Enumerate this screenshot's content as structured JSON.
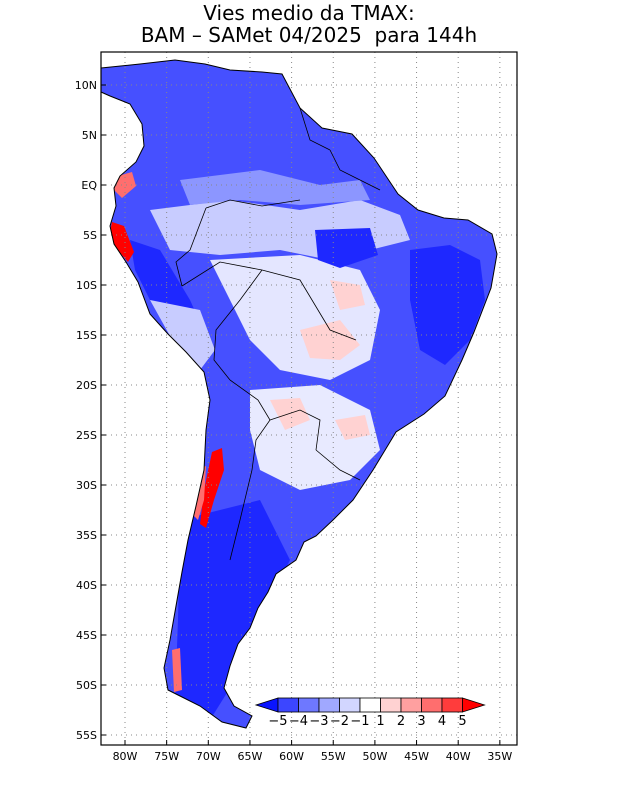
{
  "title": {
    "line1": "Vies medio da TMAX:",
    "line2": "BAM – SAMet 04/2025  para 144h"
  },
  "map": {
    "type": "contour map",
    "region": "South America",
    "lat_labels": [
      "10N",
      "5N",
      "EQ",
      "5S",
      "10S",
      "15S",
      "20S",
      "25S",
      "30S",
      "35S",
      "40S",
      "45S",
      "50S",
      "55S"
    ],
    "lon_labels": [
      "80W",
      "75W",
      "70W",
      "65W",
      "60W",
      "55W",
      "50W",
      "45W",
      "40W",
      "35W"
    ],
    "grid": "dotted"
  },
  "colorbar": {
    "labels": [
      "−5",
      "−4",
      "−3",
      "−2",
      "−1",
      "1",
      "2",
      "3",
      "4",
      "5"
    ],
    "colors": [
      "#0a14ff",
      "#3c46ff",
      "#6e78ff",
      "#a0a8ff",
      "#d2d6ff",
      "#ffffff",
      "#ffd2d2",
      "#ffa0a0",
      "#ff6e6e",
      "#ff3c3c",
      "#ff0000"
    ]
  },
  "bias_palette": {
    "strong_cold": "#1e28ff",
    "cold": "#5a64ff",
    "moderate_cold": "#8c96ff",
    "weak_cold": "#c8ccff",
    "neutral": "#ffffff",
    "weak_warm": "#ffd2d2",
    "warm": "#ff6e6e",
    "strong_warm": "#ff0000"
  }
}
